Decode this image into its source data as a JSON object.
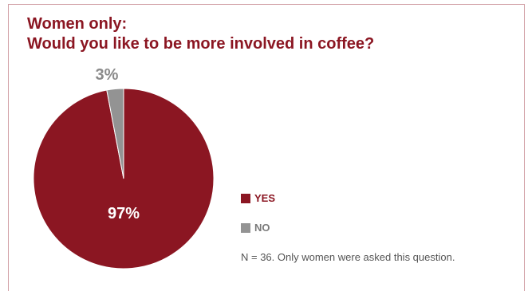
{
  "chart_data": {
    "type": "pie",
    "title_lines": [
      "Women only:",
      "Would you like to be more involved in coffee?"
    ],
    "slices": [
      {
        "label": "YES",
        "value": 97,
        "display": "97%",
        "color": "#8b1622"
      },
      {
        "label": "NO",
        "value": 3,
        "display": "3%",
        "color": "#939393"
      }
    ],
    "legend_position": "right",
    "note": "N = 36. Only women were asked this question."
  }
}
